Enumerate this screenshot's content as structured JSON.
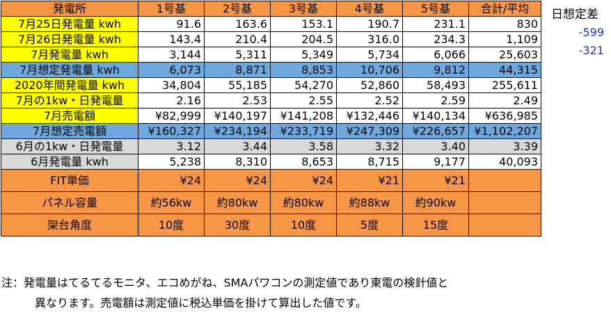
{
  "header": [
    "発電所",
    "1号基",
    "2号基",
    "3号基",
    "4号基",
    "5号基",
    "合計/平均"
  ],
  "rows": [
    {
      "label": "7月25日発電量 kwh",
      "cells": [
        "91.6",
        "163.6",
        "153.1",
        "190.7",
        "231.1",
        "830"
      ]
    },
    {
      "label": "7月26日発電量 kwh",
      "cells": [
        "143.4",
        "210.4",
        "204.5",
        "316.0",
        "234.3",
        "1,109"
      ]
    },
    {
      "label": "7月発電量 kwh",
      "cells": [
        "3,144",
        "5,311",
        "5,349",
        "5,734",
        "6,066",
        "25,603"
      ]
    },
    {
      "label": "7月想定発電量 kwh",
      "cells": [
        "6,073",
        "8,871",
        "8,853",
        "10,706",
        "9,812",
        "44,315"
      ]
    },
    {
      "label": "2020年間発電量 kwh",
      "cells": [
        "34,804",
        "55,185",
        "54,270",
        "52,860",
        "58,493",
        "255,611"
      ]
    },
    {
      "label": "7月の1kw・日発電量",
      "cells": [
        "2.16",
        "2.53",
        "2.55",
        "2.52",
        "2.59",
        "2.49"
      ]
    },
    {
      "label": "7月売電額",
      "cells": [
        "¥82,999",
        "¥140,197",
        "¥141,208",
        "¥132,446",
        "¥140,134",
        "¥636,985"
      ]
    },
    {
      "label": "7月想定売電額",
      "cells": [
        "¥160,327",
        "¥234,194",
        "¥233,719",
        "¥247,309",
        "¥226,657",
        "¥1,102,207"
      ]
    },
    {
      "label": "6月の1kw・日発電量",
      "cells": [
        "3.12",
        "3.44",
        "3.58",
        "3.32",
        "3.40",
        "3.39"
      ]
    },
    {
      "label": "6月発電量 kwh",
      "cells": [
        "5,238",
        "8,310",
        "8,653",
        "8,715",
        "9,177",
        "40,093"
      ]
    },
    {
      "label": "FIT単価",
      "cells": [
        "¥24",
        "¥24",
        "¥24",
        "¥21",
        "¥21",
        ""
      ]
    },
    {
      "label": "パネル容量",
      "cells": [
        "約56kw",
        "約80kw",
        "約80kw",
        "約88kw",
        "約90kw",
        ""
      ]
    },
    {
      "label": "架台角度",
      "cells": [
        "10度",
        "30度",
        "10度",
        "5度",
        "15度",
        ""
      ]
    }
  ],
  "side": {
    "title": "日想定差",
    "diffs": [
      "-599",
      "-321"
    ]
  },
  "note": {
    "line1": "注：発電量はてるてるモニタ、エコめがね、SMAパワコンの測定値であり東電の検針値と",
    "line2": "異なります。売電額は測定値に税込単価を掛けて算出した値です。"
  },
  "colors": {
    "orange": "#f79646",
    "yellow": "#ffff00",
    "blue": "#6fa8dc",
    "gray": "#d9d9d9",
    "diff_text": "#2233cc"
  }
}
